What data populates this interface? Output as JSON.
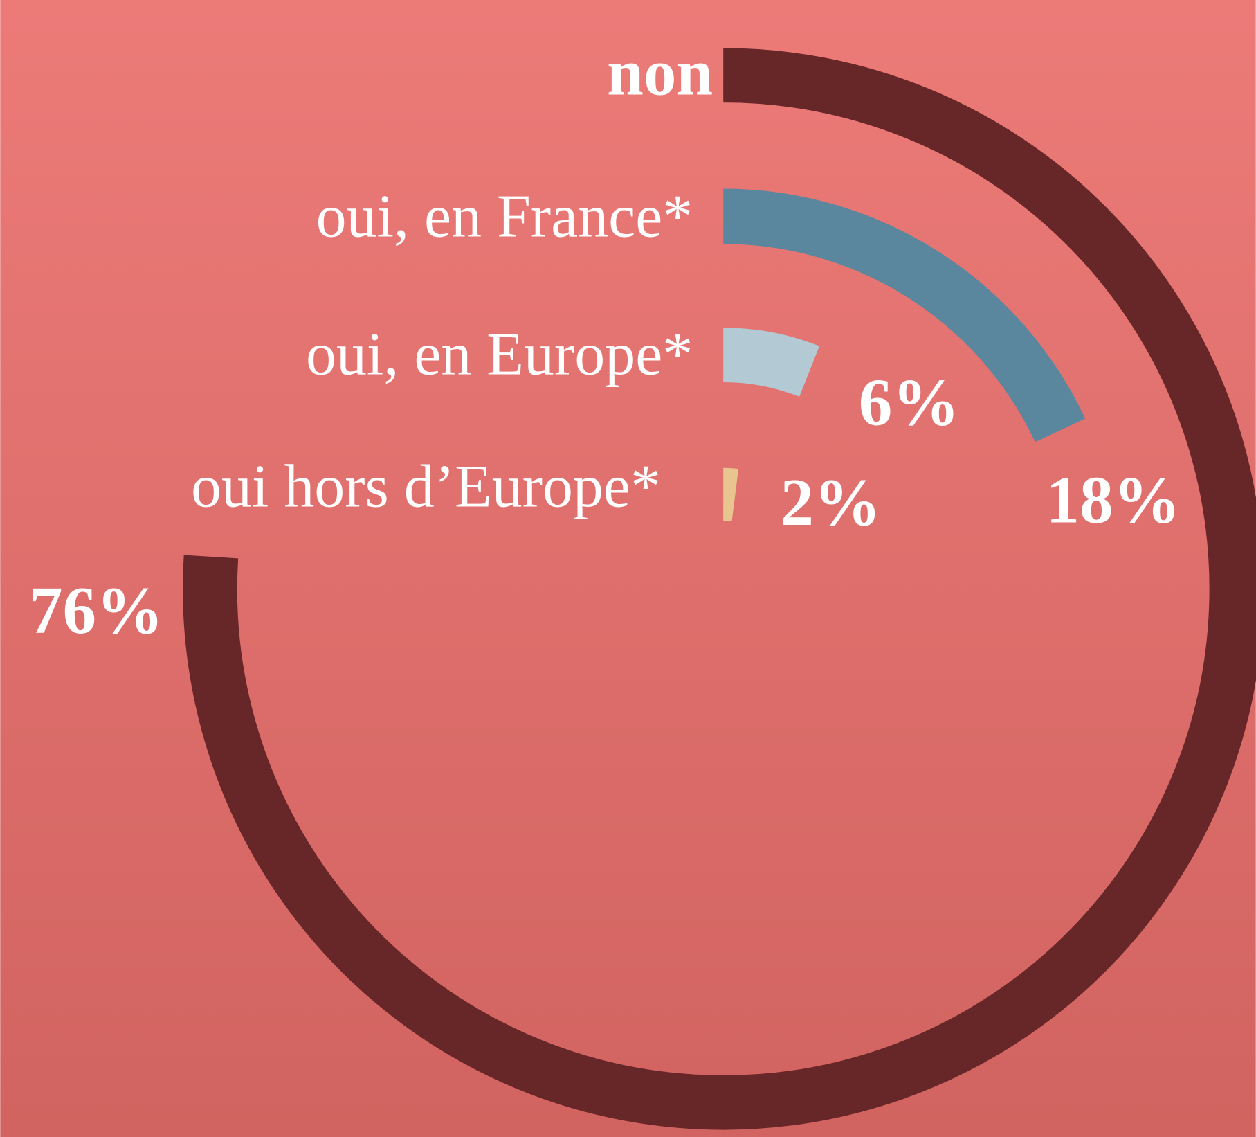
{
  "chart_data": {
    "type": "radial-bar",
    "categories": [
      "non",
      "oui, en France*",
      "oui, en Europe*",
      "oui hors d’Europe*"
    ],
    "values": [
      76,
      18,
      6,
      2
    ],
    "value_labels": [
      "76%",
      "18%",
      "6%",
      "2%"
    ],
    "colors": [
      "#672627",
      "#5a879e",
      "#b3c9d3",
      "#e8c48e"
    ]
  }
}
